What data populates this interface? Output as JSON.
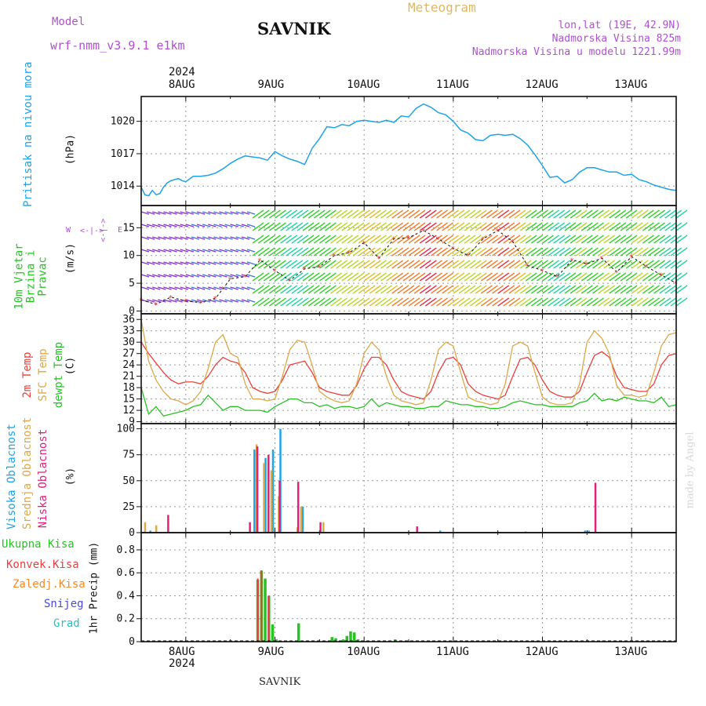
{
  "header": {
    "model_label": "Model",
    "model_name": "wrf-nmm_v3.9.1 e1km",
    "station": "SAVNIK",
    "product": "Meteogram",
    "lonlat": "lon,lat (19E, 42.9N)",
    "elevation": "Nadmorska Visina 825m",
    "model_elevation": "Nadmorska Visina u modelu 1221.99m"
  },
  "footer": {
    "station": "SAVNIK",
    "credit": "made by Angel"
  },
  "colors": {
    "pressure": "#1fa3e6",
    "t2m": "#e8403c",
    "sfc": "#dca84a",
    "dew": "#27c224",
    "high_cloud": "#1fa3e6",
    "mid_cloud": "#dca84a",
    "low_cloud": "#e0207a",
    "total_precip": "#27c224",
    "conv_precip": "#e8403c",
    "frozen_precip": "#f08a2a",
    "snow": "#4a4ad8",
    "graupel": "#2ac0c0",
    "label_purple": "#b050d0"
  },
  "chart_data": [
    {
      "type": "line",
      "title": "",
      "ylabel": "(hPa)",
      "ylabel_side": "Pritisak na nivou mora",
      "ylim": [
        1012.2,
        1022.3
      ],
      "yticks": [
        "1014",
        "1017",
        "1020"
      ],
      "x_labels_top": [
        "8AUG",
        "9AUG",
        "10AUG",
        "11AUG",
        "12AUG",
        "13AUG"
      ],
      "x_year_top": "2024",
      "x_range_hours": [
        -12,
        132
      ],
      "series": [
        {
          "name": "Pritisak na nivou mora",
          "hours": [
            -12,
            -11,
            -10,
            -9,
            -8,
            -7,
            -6,
            -5,
            -4,
            -3,
            -2,
            -1,
            0,
            2,
            4,
            6,
            8,
            10,
            12,
            14,
            16,
            18,
            20,
            22,
            24,
            26,
            28,
            30,
            32,
            34,
            36,
            38,
            40,
            42,
            44,
            46,
            48,
            50,
            52,
            54,
            56,
            58,
            60,
            62,
            64,
            66,
            68,
            70,
            72,
            74,
            76,
            78,
            80,
            82,
            84,
            86,
            88,
            90,
            92,
            94,
            96,
            98,
            100,
            102,
            104,
            106,
            108,
            110,
            112,
            114,
            116,
            118,
            120,
            122,
            124,
            126,
            128,
            130,
            132
          ],
          "values": [
            1013.9,
            1013.2,
            1013.1,
            1013.6,
            1013.2,
            1013.3,
            1013.9,
            1014.3,
            1014.5,
            1014.6,
            1014.7,
            1014.5,
            1014.4,
            1014.9,
            1014.9,
            1015.0,
            1015.2,
            1015.6,
            1016.1,
            1016.5,
            1016.8,
            1016.7,
            1016.6,
            1016.4,
            1017.2,
            1016.8,
            1016.5,
            1016.3,
            1016.0,
            1017.5,
            1018.4,
            1019.5,
            1019.4,
            1019.7,
            1019.6,
            1020.0,
            1020.1,
            1020.0,
            1019.9,
            1020.1,
            1019.9,
            1020.5,
            1020.4,
            1021.2,
            1021.6,
            1021.3,
            1020.8,
            1020.6,
            1020.0,
            1019.2,
            1018.9,
            1018.3,
            1018.2,
            1018.7,
            1018.8,
            1018.7,
            1018.8,
            1018.4,
            1017.8,
            1016.9,
            1015.9,
            1014.8,
            1014.9,
            1014.3,
            1014.6,
            1015.3,
            1015.7,
            1015.7,
            1015.5,
            1015.3,
            1015.3,
            1015.0,
            1015.1,
            1014.6,
            1014.4,
            1014.1,
            1013.9,
            1013.7,
            1013.6
          ]
        }
      ]
    },
    {
      "type": "line",
      "title": "",
      "ylabel": "(m/s)",
      "ylabel_side": "10m Vjetar Brzina i Pravac",
      "ylim": [
        -0.5,
        19
      ],
      "yticks": [
        "0",
        "5",
        "10",
        "15"
      ],
      "compass": {
        "w": "W",
        "e": "E",
        "arrow": "<-|->"
      },
      "series": [
        {
          "name": "10m Vjetar",
          "hours": [
            -12,
            -8,
            -4,
            0,
            4,
            8,
            10,
            12,
            16,
            20,
            24,
            28,
            32,
            36,
            40,
            44,
            48,
            52,
            56,
            60,
            64,
            68,
            72,
            76,
            80,
            84,
            88,
            92,
            96,
            100,
            104,
            108,
            112,
            116,
            120,
            124,
            128,
            132
          ],
          "values": [
            2.0,
            1.2,
            2.5,
            1.8,
            1.5,
            2.3,
            4.0,
            5.8,
            6.2,
            9.2,
            7.3,
            5.5,
            7.6,
            8.0,
            10.0,
            10.5,
            12.3,
            9.5,
            13.0,
            13.2,
            14.5,
            13.0,
            11.3,
            10.0,
            13.0,
            14.5,
            12.5,
            8.2,
            7.3,
            6.2,
            9.2,
            8.5,
            9.5,
            7.0,
            9.8,
            8.0,
            6.5,
            5.0
          ]
        }
      ]
    },
    {
      "type": "line",
      "title": "",
      "ylabel": "(C)",
      "ylabel_side": [
        "2m Temp",
        "SFC Temp",
        "dewpt Temp"
      ],
      "ylim": [
        8.5,
        37.5
      ],
      "yticks": [
        "9",
        "12",
        "15",
        "18",
        "21",
        "24",
        "27",
        "30",
        "33",
        "36"
      ],
      "series": [
        {
          "name": "2m Temp",
          "hours": [
            -12,
            -10,
            -8,
            -6,
            -4,
            -2,
            0,
            2,
            4,
            6,
            8,
            10,
            12,
            14,
            16,
            18,
            20,
            22,
            24,
            26,
            28,
            30,
            32,
            34,
            36,
            38,
            40,
            42,
            44,
            46,
            48,
            50,
            52,
            54,
            56,
            58,
            60,
            62,
            64,
            66,
            68,
            70,
            72,
            74,
            76,
            78,
            80,
            82,
            84,
            86,
            88,
            90,
            92,
            94,
            96,
            98,
            100,
            102,
            104,
            106,
            108,
            110,
            112,
            114,
            116,
            118,
            120,
            122,
            124,
            126,
            128,
            130,
            132
          ],
          "values": [
            30,
            27,
            24.5,
            22,
            20,
            19,
            19.5,
            19.5,
            19,
            21,
            24,
            26,
            25,
            24.5,
            22,
            18,
            17,
            16.5,
            17,
            20,
            24,
            24.5,
            25,
            22,
            18,
            17,
            16.5,
            16,
            16,
            18.5,
            23,
            26,
            26,
            24,
            20,
            17,
            16,
            15.5,
            15,
            17,
            22,
            25.5,
            26,
            24,
            19,
            17,
            16,
            15.5,
            15,
            16,
            21,
            25.5,
            26,
            24,
            20,
            17,
            16,
            15.5,
            15.5,
            17,
            22,
            26.5,
            27.5,
            26,
            21,
            18,
            17.5,
            17,
            17,
            19,
            24,
            26.5,
            27
          ]
        },
        {
          "name": "SFC Temp",
          "hours": [
            -12,
            -10,
            -8,
            -6,
            -4,
            -2,
            0,
            2,
            4,
            6,
            8,
            10,
            12,
            14,
            16,
            18,
            20,
            22,
            24,
            26,
            28,
            30,
            32,
            34,
            36,
            38,
            40,
            42,
            44,
            46,
            48,
            50,
            52,
            54,
            56,
            58,
            60,
            62,
            64,
            66,
            68,
            70,
            72,
            74,
            76,
            78,
            80,
            82,
            84,
            86,
            88,
            90,
            92,
            94,
            96,
            98,
            100,
            102,
            104,
            106,
            108,
            110,
            112,
            114,
            116,
            118,
            120,
            122,
            124,
            126,
            128,
            130,
            132
          ],
          "values": [
            36,
            25,
            20,
            17,
            15,
            14.5,
            13.5,
            14.5,
            17,
            23,
            30,
            32,
            27,
            26,
            19,
            15,
            15,
            14.5,
            15,
            21,
            28,
            30.5,
            30,
            24,
            17,
            15.5,
            14.5,
            14,
            14.5,
            19,
            27,
            30,
            28,
            21,
            16,
            14.5,
            14,
            13.5,
            14,
            20,
            28,
            30,
            29,
            22,
            15.5,
            14.5,
            14,
            13.5,
            14,
            19,
            29,
            30,
            29,
            22,
            15.5,
            14,
            13.5,
            13.5,
            14,
            19,
            30,
            33,
            31,
            27,
            18.5,
            16,
            16,
            15.5,
            16,
            22,
            29,
            32,
            32.5
          ]
        },
        {
          "name": "dewpt Temp",
          "hours": [
            -12,
            -10,
            -8,
            -6,
            -4,
            -2,
            0,
            2,
            4,
            6,
            8,
            10,
            12,
            14,
            16,
            18,
            20,
            22,
            24,
            26,
            28,
            30,
            32,
            34,
            36,
            38,
            40,
            42,
            44,
            46,
            48,
            50,
            52,
            54,
            56,
            58,
            60,
            62,
            64,
            66,
            68,
            70,
            72,
            74,
            76,
            78,
            80,
            82,
            84,
            86,
            88,
            90,
            92,
            94,
            96,
            98,
            100,
            102,
            104,
            106,
            108,
            110,
            112,
            114,
            116,
            118,
            120,
            122,
            124,
            126,
            128,
            130,
            132
          ],
          "values": [
            18,
            11,
            13,
            10.5,
            11,
            11.5,
            12,
            13,
            13.5,
            16,
            14,
            12,
            13,
            13,
            12,
            12,
            12,
            11.5,
            13,
            14,
            15,
            15,
            14,
            14,
            13,
            13.5,
            12.5,
            13,
            13,
            12.5,
            13,
            15,
            13,
            14,
            13.5,
            13,
            13,
            12.5,
            12.5,
            13,
            13,
            14.5,
            14,
            13.5,
            13.5,
            13,
            13,
            12.5,
            12.5,
            13,
            14,
            14.5,
            14,
            13.5,
            13.5,
            13,
            13,
            13,
            13,
            14,
            14.5,
            16.5,
            14.5,
            15,
            14.5,
            15.5,
            15,
            14.5,
            14.5,
            14,
            15.5,
            13,
            13.5
          ]
        }
      ]
    },
    {
      "type": "bar",
      "title": "",
      "ylabel": "(%)",
      "ylabel_side": [
        "Visoka Oblacnost",
        "Srednja Oblacnost",
        "Niska Oblacnost"
      ],
      "ylim": [
        0,
        105
      ],
      "yticks": [
        "0",
        "25",
        "50",
        "75",
        "100"
      ],
      "series": [
        {
          "name": "Visoka Oblacnost",
          "hours": [
            -10,
            18,
            21,
            23,
            25,
            31,
            68,
            91,
            107,
            108
          ],
          "values": [
            2,
            80,
            72,
            80,
            100,
            25,
            2,
            1,
            2,
            2
          ]
        },
        {
          "name": "Srednja Oblacnost",
          "hours": [
            -11,
            -8,
            19,
            21,
            23,
            25,
            30,
            31,
            37
          ],
          "values": [
            10,
            7,
            85,
            67,
            60,
            35,
            5,
            25,
            10
          ]
        },
        {
          "name": "Niska Oblacnost",
          "hours": [
            -5,
            17,
            19,
            22,
            25,
            30,
            36,
            62,
            110
          ],
          "values": [
            17,
            10,
            83,
            75,
            50,
            49,
            10,
            6,
            48
          ]
        }
      ]
    },
    {
      "type": "bar",
      "title": "",
      "ylabel": "1hr Precip (mm)",
      "ylabel_side": [
        "Ukupna Kisa",
        "Konvek.Kisa",
        "Zaledj.Kisa",
        "Snijeg",
        "Grad"
      ],
      "ylim": [
        0,
        0.95
      ],
      "yticks": [
        "0",
        "0.2",
        "0.4",
        "0.6",
        "0.8"
      ],
      "x_labels_bottom": [
        "8AUG",
        "9AUG",
        "10AUG",
        "11AUG",
        "12AUG",
        "13AUG"
      ],
      "x_year_bottom": "2024",
      "series": [
        {
          "name": "Ukupna Kisa",
          "hours": [
            19,
            20,
            21,
            22,
            23,
            24,
            30,
            39,
            40,
            42,
            43,
            44,
            45,
            46,
            56,
            112
          ],
          "values": [
            0.54,
            0.62,
            0.55,
            0.4,
            0.15,
            0.02,
            0.16,
            0.04,
            0.03,
            0.02,
            0.05,
            0.09,
            0.08,
            0.02,
            0.02,
            0.01
          ]
        },
        {
          "name": "Konvek.Kisa",
          "hours": [
            19,
            20,
            22
          ],
          "values": [
            0.55,
            0.62,
            0.4
          ]
        }
      ]
    }
  ]
}
